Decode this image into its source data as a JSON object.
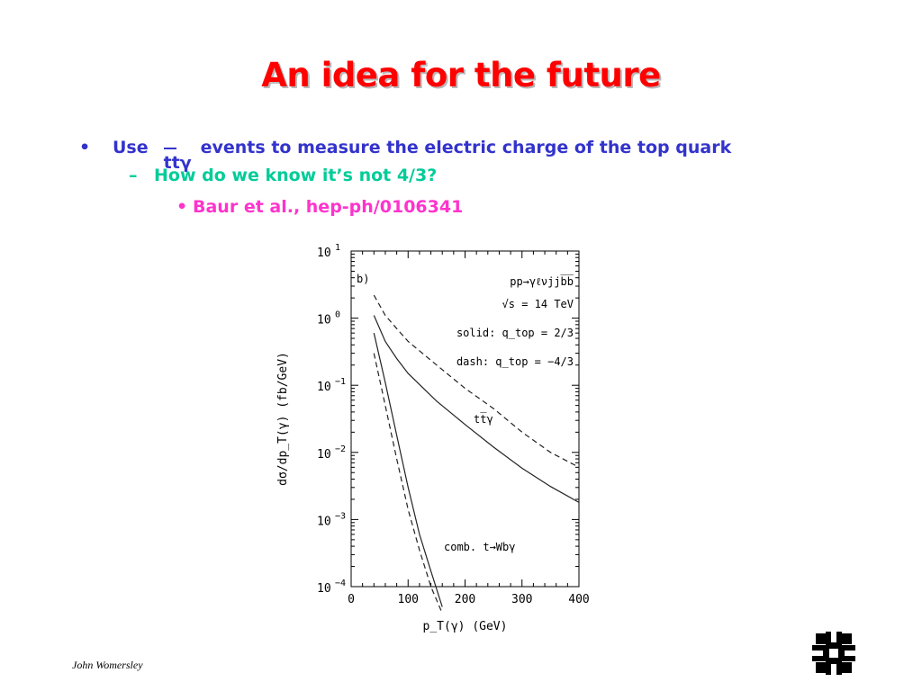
{
  "slide": {
    "title": "An idea for the future",
    "bullets": {
      "level1": {
        "marker": "•",
        "prefix": "Use",
        "symbol": "ttγ",
        "suffix": "events to measure the electric charge of the top quark"
      },
      "level2": {
        "marker": "–",
        "text": "How do we know it’s not 4/3?"
      },
      "level3": {
        "marker": "•",
        "text": "Baur et al., hep-ph/0106341"
      }
    },
    "footer": "John Womersley",
    "logo_icon": "fermilab-logo-icon"
  },
  "colors": {
    "title": "#ff0000",
    "level1": "#3333cc",
    "level2": "#00cc99",
    "level3": "#ff33cc"
  },
  "chart_data": {
    "type": "line",
    "panel_label": "b)",
    "process": "pp→γℓνjjb̅b̅",
    "energy": "√s = 14  TeV",
    "legend": [
      "solid:  q_top = 2/3",
      "dash:  q_top = −4/3"
    ],
    "xlabel": "p_T(γ)  (GeV)",
    "ylabel": "dσ/dp_T(γ)  (fb/GeV)",
    "xlim": [
      0,
      400
    ],
    "ylim_log10": [
      -4,
      1
    ],
    "y_scale": "log",
    "x_ticks": [
      0,
      100,
      200,
      300,
      400
    ],
    "y_ticks_exp": [
      1,
      0,
      -1,
      -2,
      -3,
      -4
    ],
    "curve_labels": {
      "ttgamma": "tt̅γ",
      "comb": "comb.  t→Wbγ"
    },
    "series": [
      {
        "name": "tt̅γ (solid)",
        "style": "solid",
        "x": [
          40,
          60,
          80,
          100,
          150,
          200,
          250,
          300,
          350,
          400
        ],
        "y": [
          1.1,
          0.45,
          0.25,
          0.15,
          0.058,
          0.026,
          0.012,
          0.0058,
          0.0031,
          0.0018
        ]
      },
      {
        "name": "tt̅γ (dash)",
        "style": "dash",
        "x": [
          40,
          60,
          80,
          100,
          150,
          200,
          250,
          300,
          350,
          400
        ],
        "y": [
          2.2,
          1.1,
          0.7,
          0.45,
          0.2,
          0.09,
          0.045,
          0.02,
          0.01,
          0.006
        ]
      },
      {
        "name": "comb. (solid)",
        "style": "solid",
        "x": [
          40,
          60,
          80,
          100,
          120,
          140,
          160
        ],
        "y": [
          0.6,
          0.11,
          0.018,
          0.003,
          0.0006,
          0.00017,
          5e-05
        ]
      },
      {
        "name": "comb. (dash)",
        "style": "dash",
        "x": [
          40,
          60,
          80,
          100,
          120,
          140,
          160
        ],
        "y": [
          0.3,
          0.05,
          0.008,
          0.0014,
          0.00035,
          0.0001,
          4e-05
        ]
      }
    ]
  }
}
